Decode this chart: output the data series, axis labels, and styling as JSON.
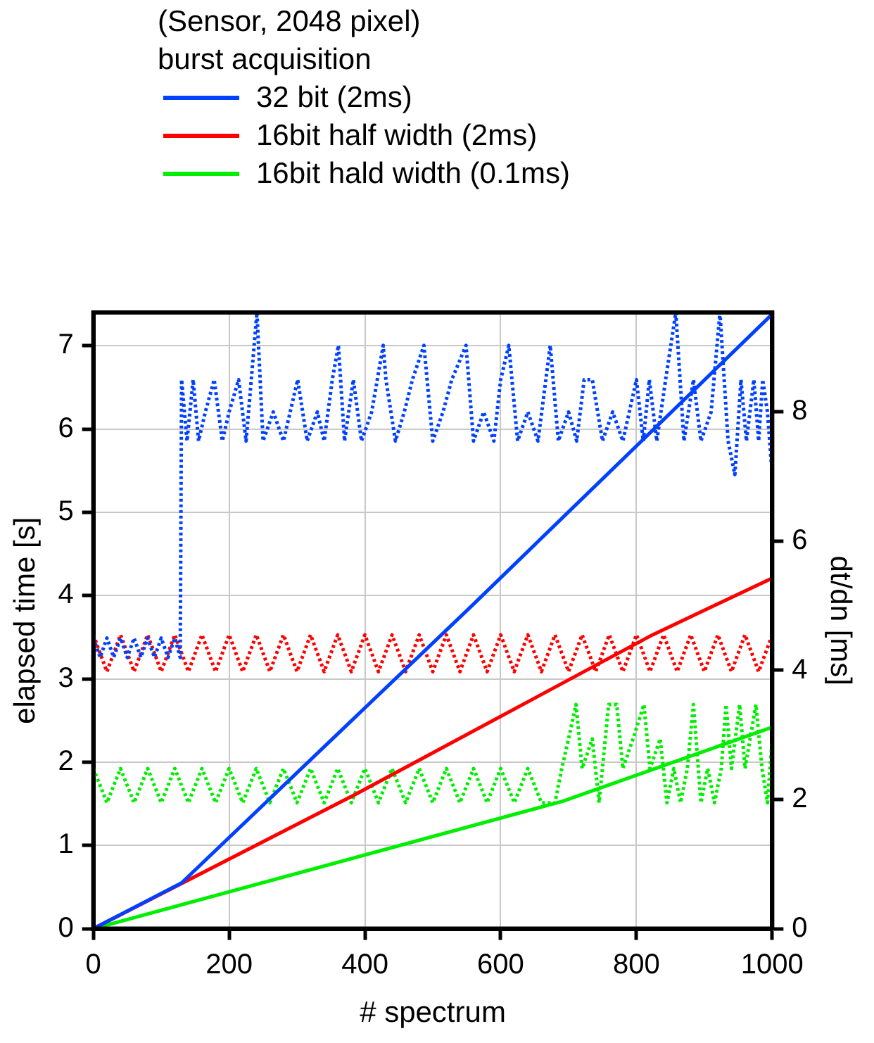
{
  "chart_data": {
    "type": "line",
    "legend_title": "(Sensor, 2048 pixel)\nburst acquisition",
    "xlabel": "# spectrum",
    "ylabel": "elapsed time [s]",
    "y2label": "dt/dn [ms]",
    "xlim": [
      0,
      1000
    ],
    "xticks": [
      0,
      200,
      400,
      600,
      800,
      1000
    ],
    "ylim": [
      0,
      7.4
    ],
    "yticks": [
      0,
      1,
      2,
      3,
      4,
      5,
      6,
      7
    ],
    "y2lim": [
      0,
      9.54
    ],
    "y2ticks": [
      0,
      2,
      4,
      6,
      8
    ],
    "grid": true,
    "legend": "top",
    "marker": "none",
    "series": [
      {
        "name": "32 bit (2ms)",
        "color": "#0040ff",
        "line_style": "solid",
        "x": [
          0,
          130,
          559,
          1000
        ],
        "values": [
          0,
          0.55,
          3.89,
          7.38
        ]
      },
      {
        "name": "16bit half width (2ms)",
        "color": "#ff0000",
        "line_style": "solid",
        "x": [
          0,
          383,
          824,
          1000
        ],
        "values": [
          0,
          1.6,
          3.53,
          4.21
        ]
      },
      {
        "name": "16bit hald width (0.1ms)",
        "color": "#00ee00",
        "line_style": "solid",
        "x": [
          0,
          691,
          1000
        ],
        "values": [
          0,
          1.53,
          2.42
        ]
      },
      {
        "color": "#0040ff",
        "line_style": "dotted",
        "axis": "y2",
        "x": [
          0,
          10,
          20,
          30,
          40,
          50,
          60,
          70,
          80,
          90,
          100,
          110,
          120,
          128,
          130,
          138,
          147,
          155,
          165,
          178,
          190,
          200,
          214,
          225,
          241,
          250,
          265,
          280,
          301,
          315,
          330,
          340,
          352,
          361,
          370,
          383,
          395,
          410,
          427,
          431,
          445,
          458,
          470,
          487,
          500,
          515,
          528,
          549,
          560,
          575,
          590,
          600,
          612,
          625,
          640,
          655,
          673,
          685,
          700,
          712,
          723,
          735,
          750,
          765,
          780,
          800,
          810,
          819,
          830,
          843,
          858,
          870,
          884,
          895,
          910,
          923,
          935,
          945,
          954,
          962,
          973,
          980,
          986,
          993,
          1000
        ],
        "values": [
          4.5,
          4.2,
          4.5,
          4.2,
          4.5,
          4.2,
          4.5,
          4.2,
          4.5,
          4.2,
          4.5,
          4.2,
          4.5,
          4.2,
          8.5,
          7.55,
          8.5,
          7.55,
          8.0,
          8.5,
          7.55,
          8.0,
          8.5,
          7.55,
          9.54,
          7.55,
          8.0,
          7.55,
          8.5,
          7.55,
          8.0,
          7.55,
          8.5,
          9.03,
          7.55,
          8.5,
          7.55,
          8.0,
          9.03,
          8.5,
          7.55,
          8.0,
          8.5,
          9.03,
          7.55,
          8.0,
          8.5,
          9.03,
          7.55,
          8.0,
          7.55,
          8.5,
          9.03,
          7.55,
          8.0,
          7.55,
          9.03,
          7.55,
          8.0,
          7.55,
          8.5,
          8.5,
          7.55,
          8.0,
          7.55,
          8.5,
          7.55,
          8.5,
          7.55,
          8.5,
          9.54,
          7.55,
          8.5,
          7.55,
          8.0,
          9.54,
          7.55,
          7.03,
          8.5,
          7.55,
          8.5,
          7.55,
          8.5,
          8.0,
          7.03
        ]
      },
      {
        "color": "#ff0000",
        "line_style": "dotted",
        "axis": "y2",
        "x": [
          0,
          20,
          40,
          60,
          80,
          100,
          120,
          140,
          160,
          180,
          200,
          220,
          240,
          260,
          280,
          300,
          320,
          340,
          360,
          380,
          400,
          420,
          440,
          460,
          480,
          500,
          520,
          540,
          560,
          580,
          600,
          620,
          640,
          660,
          680,
          700,
          720,
          740,
          760,
          780,
          800,
          820,
          840,
          860,
          880,
          900,
          920,
          940,
          960,
          980,
          1000
        ],
        "values": [
          4.55,
          3.98,
          4.55,
          3.98,
          4.55,
          3.98,
          4.55,
          3.98,
          4.55,
          3.98,
          4.55,
          3.98,
          4.55,
          3.98,
          4.55,
          3.98,
          4.55,
          3.98,
          4.55,
          3.98,
          4.55,
          3.98,
          4.55,
          3.98,
          4.55,
          3.98,
          4.55,
          3.98,
          4.55,
          3.98,
          4.55,
          3.98,
          4.55,
          3.98,
          4.55,
          3.98,
          4.55,
          3.98,
          4.55,
          3.98,
          4.55,
          3.98,
          4.55,
          3.98,
          4.55,
          3.98,
          4.55,
          3.98,
          4.55,
          3.98,
          4.55
        ]
      },
      {
        "color": "#00ee00",
        "line_style": "dotted",
        "axis": "y2",
        "x": [
          0,
          20,
          40,
          60,
          80,
          100,
          120,
          140,
          160,
          180,
          200,
          220,
          240,
          260,
          280,
          300,
          320,
          340,
          360,
          380,
          400,
          420,
          440,
          460,
          480,
          500,
          520,
          540,
          560,
          580,
          600,
          620,
          640,
          660,
          680,
          690,
          700,
          711,
          720,
          735,
          745,
          759,
          771,
          780,
          795,
          811,
          820,
          835,
          845,
          855,
          865,
          875,
          884,
          895,
          905,
          915,
          925,
          932,
          940,
          952,
          960,
          976,
          985,
          993,
          1000
        ],
        "values": [
          2.48,
          1.95,
          2.48,
          1.95,
          2.48,
          1.95,
          2.48,
          1.95,
          2.48,
          1.95,
          2.48,
          1.95,
          2.48,
          1.95,
          2.48,
          1.95,
          2.48,
          1.95,
          2.48,
          1.95,
          2.48,
          1.95,
          2.48,
          1.95,
          2.48,
          1.95,
          2.48,
          1.95,
          2.48,
          1.95,
          2.48,
          1.95,
          2.48,
          1.95,
          1.95,
          2.48,
          2.94,
          3.47,
          2.48,
          2.94,
          1.95,
          3.47,
          3.47,
          2.48,
          2.94,
          3.47,
          2.48,
          2.94,
          1.95,
          2.48,
          1.95,
          2.48,
          3.47,
          1.95,
          2.48,
          1.95,
          2.48,
          3.47,
          2.48,
          3.47,
          2.48,
          3.47,
          2.48,
          1.95,
          2.94
        ]
      }
    ]
  }
}
